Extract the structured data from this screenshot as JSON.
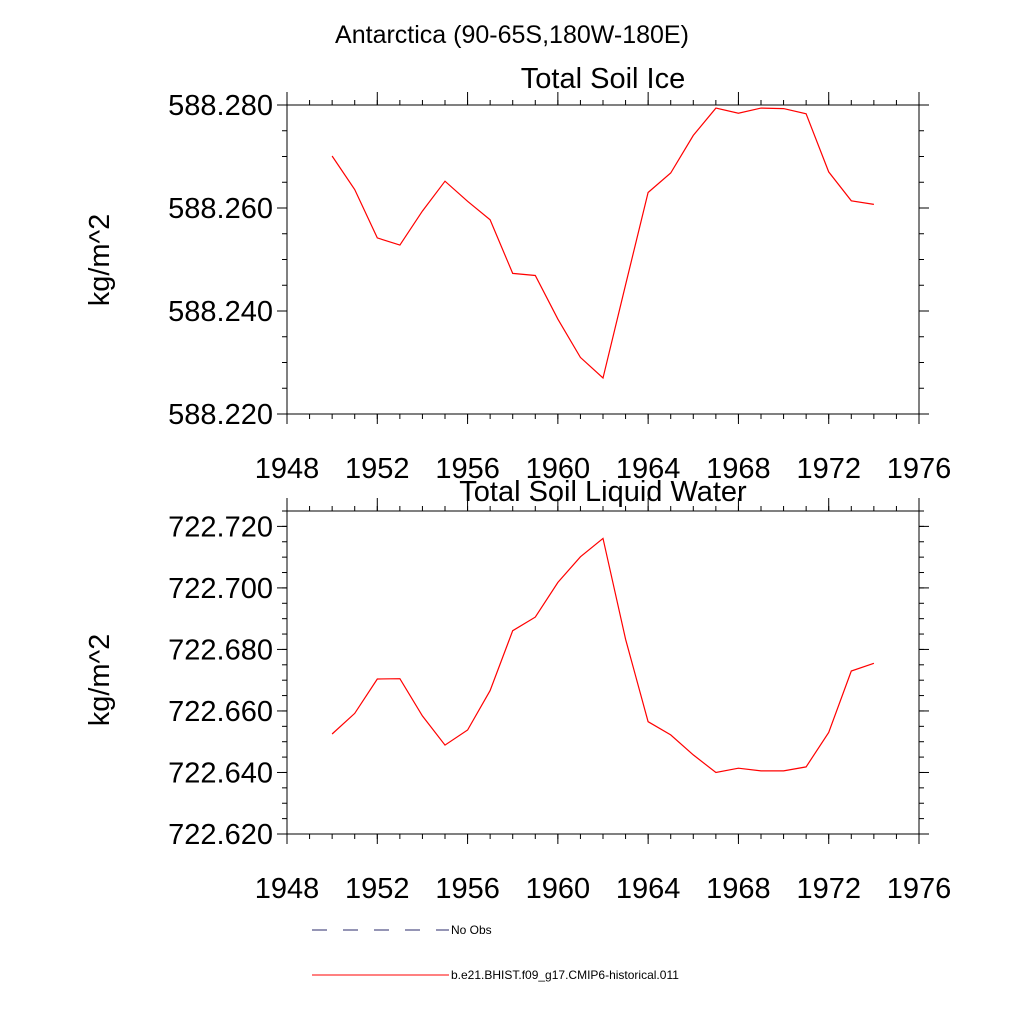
{
  "figure": {
    "title": "Antarctica (90-65S,180W-180E)"
  },
  "chart_data": [
    {
      "type": "line",
      "title": "Total Soil Ice",
      "xlabel": "",
      "ylabel": "kg/m^2",
      "xlim": [
        1948,
        1976
      ],
      "ylim": [
        588.22,
        588.28
      ],
      "xticks": [
        1948,
        1952,
        1956,
        1960,
        1964,
        1968,
        1972,
        1976
      ],
      "xtick_labels": [
        "1948",
        "1952",
        "1956",
        "1960",
        "1964",
        "1968",
        "1972",
        "1976"
      ],
      "yticks": [
        588.22,
        588.24,
        588.26,
        588.28
      ],
      "ytick_labels": [
        "588.220",
        "588.240",
        "588.260",
        "588.280"
      ],
      "yminor_step": 0.005,
      "xminor_step": 1,
      "grid": false,
      "series": [
        {
          "name": "b.e21.BHIST.f09_g17.CMIP6-historical.011",
          "color": "#ff0000",
          "x": [
            1950,
            1951,
            1952,
            1953,
            1954,
            1955,
            1956,
            1957,
            1958,
            1959,
            1960,
            1961,
            1962,
            1963,
            1964,
            1965,
            1966,
            1967,
            1968,
            1969,
            1970,
            1971,
            1972,
            1973,
            1974
          ],
          "y": [
            588.2701,
            588.2636,
            588.2542,
            588.2528,
            588.2594,
            588.2652,
            588.2613,
            588.2577,
            588.2473,
            588.2469,
            588.2384,
            588.231,
            588.227,
            588.2451,
            588.263,
            588.2668,
            588.2741,
            588.2794,
            588.2784,
            588.2794,
            588.2793,
            588.2783,
            588.267,
            588.2614,
            588.2607
          ]
        }
      ]
    },
    {
      "type": "line",
      "title": "Total Soil Liquid Water",
      "xlabel": "",
      "ylabel": "kg/m^2",
      "xlim": [
        1948,
        1976
      ],
      "ylim": [
        722.62,
        722.725
      ],
      "xticks": [
        1948,
        1952,
        1956,
        1960,
        1964,
        1968,
        1972,
        1976
      ],
      "xtick_labels": [
        "1948",
        "1952",
        "1956",
        "1960",
        "1964",
        "1968",
        "1972",
        "1976"
      ],
      "yticks": [
        722.62,
        722.64,
        722.66,
        722.68,
        722.7,
        722.72
      ],
      "ytick_labels": [
        "722.620",
        "722.640",
        "722.660",
        "722.680",
        "722.700",
        "722.720"
      ],
      "yminor_step": 0.005,
      "xminor_step": 1,
      "grid": false,
      "series": [
        {
          "name": "b.e21.BHIST.f09_g17.CMIP6-historical.011",
          "color": "#ff0000",
          "x": [
            1950,
            1951,
            1952,
            1953,
            1954,
            1955,
            1956,
            1957,
            1958,
            1959,
            1960,
            1961,
            1962,
            1963,
            1964,
            1965,
            1966,
            1967,
            1968,
            1969,
            1970,
            1971,
            1972,
            1973,
            1974
          ],
          "y": [
            722.6525,
            722.6592,
            722.6704,
            722.6705,
            722.6584,
            722.6489,
            722.6538,
            722.6666,
            722.6861,
            722.6905,
            722.7018,
            722.7101,
            722.7161,
            722.6833,
            722.6565,
            722.6522,
            722.6457,
            722.64,
            722.6414,
            722.6405,
            722.6405,
            722.6418,
            722.653,
            722.673,
            722.6755
          ]
        }
      ]
    }
  ],
  "legend": {
    "position": "bottom",
    "items": [
      {
        "label": "No Obs",
        "color": "#2b2b6b",
        "style": "dashed"
      },
      {
        "label": "b.e21.BHIST.f09_g17.CMIP6-historical.011",
        "color": "#ff0000",
        "style": "solid"
      }
    ]
  }
}
